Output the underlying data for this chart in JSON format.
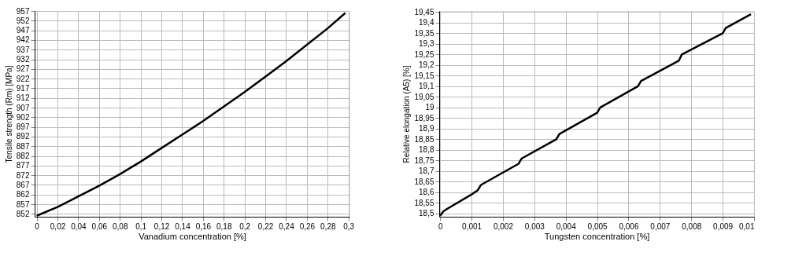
{
  "chart_data": [
    {
      "type": "line",
      "xlabel": "Vanadium concentration [%]",
      "ylabel": "Tensile strength (Rm) [MPa]",
      "grid": true,
      "marker": "none",
      "line_style": "solid",
      "x": [
        0,
        0.02,
        0.04,
        0.06,
        0.08,
        0.1,
        0.12,
        0.14,
        0.16,
        0.18,
        0.2,
        0.22,
        0.24,
        0.26,
        0.28,
        0.297
      ],
      "series": [
        {
          "color": "#000000",
          "values": [
            851,
            855.5,
            861,
            866.5,
            872.5,
            879,
            886,
            893,
            900,
            907.5,
            915,
            923,
            931,
            939.5,
            948,
            956
          ]
        }
      ],
      "xlim": [
        -0.002,
        0.301
      ],
      "ylim": [
        850.5,
        957
      ],
      "xticks": [
        0,
        {
          "value": 0.02,
          "label": "0,02"
        },
        {
          "value": 0.04,
          "label": "0,04"
        },
        {
          "value": 0.06,
          "label": "0,06"
        },
        {
          "value": 0.08,
          "label": "0,08"
        },
        {
          "value": 0.1,
          "label": "0,1"
        },
        {
          "value": 0.12,
          "label": "0,12"
        },
        {
          "value": 0.14,
          "label": "0,14"
        },
        {
          "value": 0.16,
          "label": "0,16"
        },
        {
          "value": 0.18,
          "label": "0,18"
        },
        {
          "value": 0.2,
          "label": "0,2"
        },
        {
          "value": 0.22,
          "label": "0,22"
        },
        {
          "value": 0.24,
          "label": "0,24"
        },
        {
          "value": 0.26,
          "label": "0,26"
        },
        {
          "value": 0.28,
          "label": "0,28"
        },
        {
          "value": 0.3,
          "label": "0,3"
        }
      ],
      "yticks": [
        852,
        857,
        862,
        867,
        872,
        877,
        882,
        887,
        892,
        897,
        902,
        907,
        912,
        917,
        922,
        927,
        932,
        937,
        942,
        947,
        952,
        957
      ]
    },
    {
      "type": "line",
      "xlabel": "Tungsten concentration [%]",
      "ylabel": "Relative elongation (A5) [%]",
      "grid": true,
      "marker": "none",
      "line_style": "solid",
      "x": [
        0,
        0.0001,
        0.0002,
        0.001,
        0.0012,
        0.0013,
        0.0025,
        0.0026,
        0.0037,
        0.0038,
        0.005,
        0.0051,
        0.0063,
        0.0064,
        0.0076,
        0.0077,
        0.009,
        0.0091,
        0.0099
      ],
      "series": [
        {
          "color": "#000000",
          "values": [
            18.49,
            18.51,
            18.52,
            18.59,
            18.61,
            18.635,
            18.735,
            18.76,
            18.85,
            18.875,
            18.975,
            19.0,
            19.1,
            19.125,
            19.22,
            19.25,
            19.35,
            19.375,
            19.44
          ]
        }
      ],
      "xlim": [
        -3e-05,
        0.01
      ],
      "ylim": [
        18.485,
        19.455
      ],
      "xticks": [
        0,
        {
          "value": 0.001,
          "label": "0,001"
        },
        {
          "value": 0.002,
          "label": "0,002"
        },
        {
          "value": 0.003,
          "label": "0,003"
        },
        {
          "value": 0.004,
          "label": "0,004"
        },
        {
          "value": 0.005,
          "label": "0,005"
        },
        {
          "value": 0.006,
          "label": "0,006"
        },
        {
          "value": 0.007,
          "label": "0,007"
        },
        {
          "value": 0.008,
          "label": "0,008"
        },
        {
          "value": 0.009,
          "label": "0,009"
        },
        {
          "value": 0.01,
          "label": "0,01"
        }
      ],
      "yticks": [
        {
          "value": 18.5,
          "label": "18,5"
        },
        {
          "value": 18.55,
          "label": "18,55"
        },
        {
          "value": 18.6,
          "label": "18,6"
        },
        {
          "value": 18.65,
          "label": "18,65"
        },
        {
          "value": 18.7,
          "label": "18,7"
        },
        {
          "value": 18.75,
          "label": "18,75"
        },
        {
          "value": 18.8,
          "label": "18,8"
        },
        {
          "value": 18.85,
          "label": "18,85"
        },
        {
          "value": 18.9,
          "label": "18,9"
        },
        {
          "value": 18.95,
          "label": "18,95"
        },
        {
          "value": 19,
          "label": "19"
        },
        {
          "value": 19.05,
          "label": "19,05"
        },
        {
          "value": 19.1,
          "label": "19,1"
        },
        {
          "value": 19.15,
          "label": "19,15"
        },
        {
          "value": 19.2,
          "label": "19,2"
        },
        {
          "value": 19.25,
          "label": "19,25"
        },
        {
          "value": 19.3,
          "label": "19,3"
        },
        {
          "value": 19.35,
          "label": "19,35"
        },
        {
          "value": 19.4,
          "label": "19,4"
        },
        {
          "value": 19.45,
          "label": "19,45"
        }
      ]
    }
  ]
}
